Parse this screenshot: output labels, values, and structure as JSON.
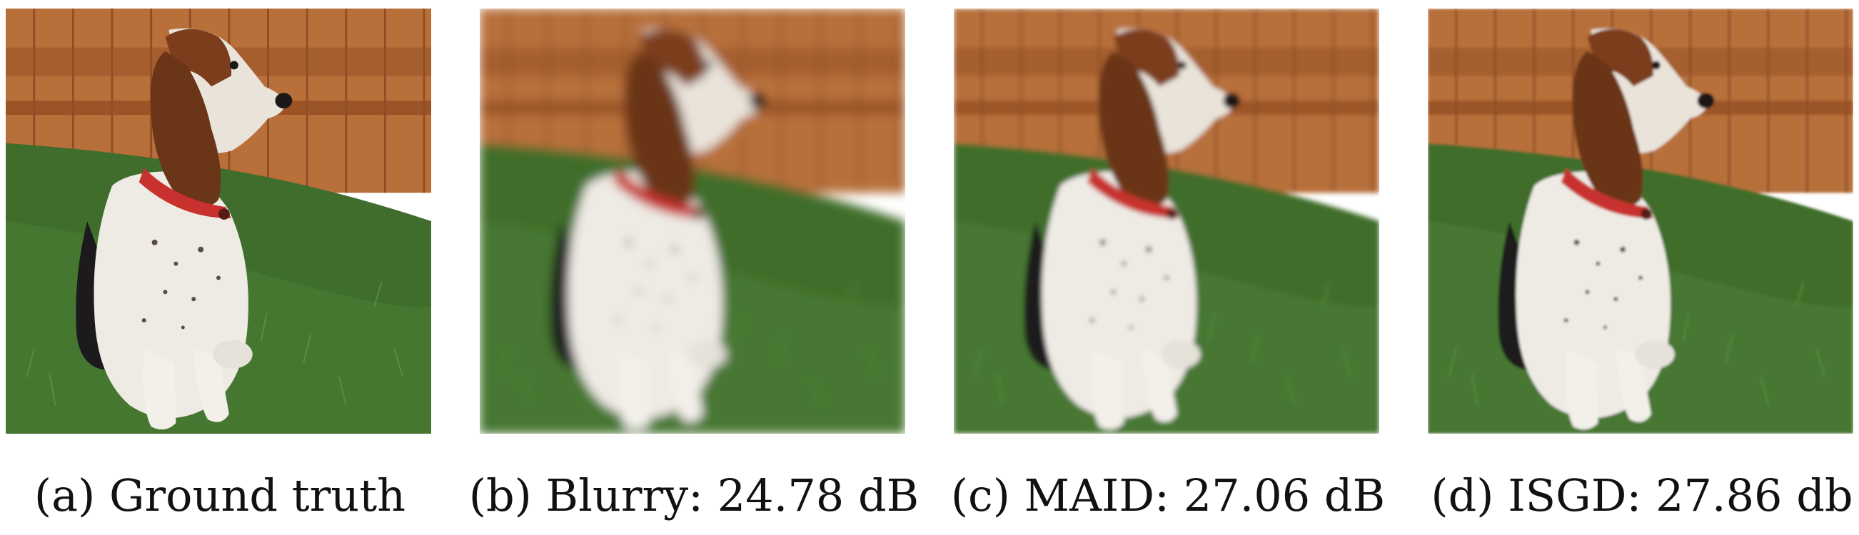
{
  "figure": {
    "panels": [
      {
        "id": "a",
        "caption": "(a) Ground truth",
        "blur": 0
      },
      {
        "id": "b",
        "caption": "(b) Blurry: 24.78 dB",
        "blur": 7
      },
      {
        "id": "c",
        "caption": "(c) MAID: 27.06 dB",
        "blur": 3.5
      },
      {
        "id": "d",
        "caption": "(d) ISGD: 27.86 db",
        "blur": 1.8
      }
    ]
  },
  "colors": {
    "fence": "#b86f3a",
    "fence_dark": "#8f4f26",
    "grass": "#3f6e2c",
    "grass_light": "#5f8f3e",
    "ear": "#6b3517",
    "white_fur": "#eeeae4",
    "black_fur": "#1c1a1c",
    "collar": "#c8312e"
  }
}
